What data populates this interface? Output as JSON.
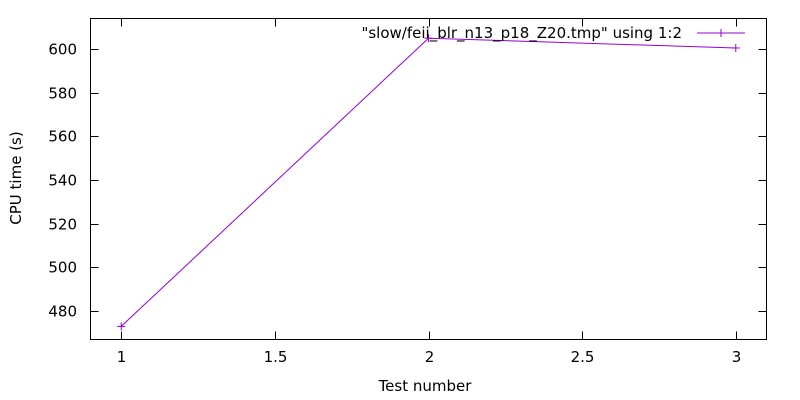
{
  "chart_data": {
    "type": "line",
    "title": "",
    "xlabel": "Test number",
    "ylabel": "CPU time (s)",
    "xlim": [
      0.9,
      3.1
    ],
    "ylim": [
      467,
      614
    ],
    "xticks": [
      1,
      1.5,
      2,
      2.5,
      3
    ],
    "yticks": [
      480,
      500,
      520,
      540,
      560,
      580,
      600
    ],
    "legend_position": "top-right",
    "grid": false,
    "series": [
      {
        "name": "\"slow/feii_blr_n13_p18_Z20.tmp\" using 1:2",
        "color": "#9400d3",
        "marker": "plus",
        "x": [
          1,
          2,
          3
        ],
        "y": [
          473,
          605,
          600.5
        ]
      }
    ]
  }
}
